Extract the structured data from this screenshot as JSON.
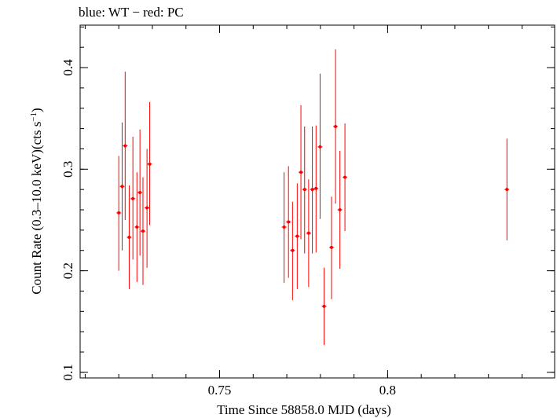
{
  "chart_data": {
    "type": "scatter",
    "title": "blue: WT − red: PC",
    "xlabel": "Time Since 58858.0 MJD (days)",
    "ylabel_main": "Count Rate (0.3–10.0 keV)(cts s",
    "ylabel_sup": "−1",
    "ylabel_end": ")",
    "xlim": [
      0.7085,
      0.8497
    ],
    "ylim": [
      0.0945,
      0.4418
    ],
    "xticks": [
      {
        "value": 0.75,
        "label": "0.75"
      },
      {
        "value": 0.8,
        "label": "0.8"
      }
    ],
    "yticks": [
      {
        "value": 0.1,
        "label": "0.1"
      },
      {
        "value": 0.2,
        "label": "0.2"
      },
      {
        "value": 0.3,
        "label": "0.3"
      },
      {
        "value": 0.4,
        "label": "0.4"
      }
    ],
    "x_minor_step": 0.01,
    "y_minor_step": 0.02,
    "grid": false,
    "series": [
      {
        "name": "PC",
        "color": "#ff0000",
        "points": [
          {
            "x": 0.72,
            "y": 0.257,
            "ylo": 0.2,
            "yhi": 0.313
          },
          {
            "x": 0.721,
            "y": 0.283,
            "ylo": 0.22,
            "yhi": 0.346
          },
          {
            "x": 0.7219,
            "y": 0.323,
            "ylo": 0.25,
            "yhi": 0.396
          },
          {
            "x": 0.7231,
            "y": 0.233,
            "ylo": 0.182,
            "yhi": 0.284
          },
          {
            "x": 0.7242,
            "y": 0.271,
            "ylo": 0.211,
            "yhi": 0.332
          },
          {
            "x": 0.7254,
            "y": 0.243,
            "ylo": 0.189,
            "yhi": 0.297
          },
          {
            "x": 0.7263,
            "y": 0.277,
            "ylo": 0.215,
            "yhi": 0.339
          },
          {
            "x": 0.7272,
            "y": 0.239,
            "ylo": 0.186,
            "yhi": 0.292
          },
          {
            "x": 0.7284,
            "y": 0.262,
            "ylo": 0.203,
            "yhi": 0.32
          },
          {
            "x": 0.7292,
            "y": 0.305,
            "ylo": 0.245,
            "yhi": 0.366
          },
          {
            "x": 0.7692,
            "y": 0.243,
            "ylo": 0.188,
            "yhi": 0.297
          },
          {
            "x": 0.7705,
            "y": 0.248,
            "ylo": 0.193,
            "yhi": 0.303
          },
          {
            "x": 0.7717,
            "y": 0.22,
            "ylo": 0.171,
            "yhi": 0.268
          },
          {
            "x": 0.7731,
            "y": 0.234,
            "ylo": 0.182,
            "yhi": 0.286
          },
          {
            "x": 0.7742,
            "y": 0.297,
            "ylo": 0.231,
            "yhi": 0.363
          },
          {
            "x": 0.7753,
            "y": 0.28,
            "ylo": 0.217,
            "yhi": 0.342
          },
          {
            "x": 0.7765,
            "y": 0.237,
            "ylo": 0.184,
            "yhi": 0.29
          },
          {
            "x": 0.7776,
            "y": 0.28,
            "ylo": 0.217,
            "yhi": 0.342
          },
          {
            "x": 0.7787,
            "y": 0.281,
            "ylo": 0.218,
            "yhi": 0.343
          },
          {
            "x": 0.7799,
            "y": 0.322,
            "ylo": 0.251,
            "yhi": 0.394
          },
          {
            "x": 0.7811,
            "y": 0.165,
            "ylo": 0.127,
            "yhi": 0.203
          },
          {
            "x": 0.7833,
            "y": 0.223,
            "ylo": 0.172,
            "yhi": 0.273
          },
          {
            "x": 0.7845,
            "y": 0.342,
            "ylo": 0.266,
            "yhi": 0.418
          },
          {
            "x": 0.7858,
            "y": 0.26,
            "ylo": 0.202,
            "yhi": 0.318
          },
          {
            "x": 0.7873,
            "y": 0.292,
            "ylo": 0.239,
            "yhi": 0.345
          },
          {
            "x": 0.8355,
            "y": 0.28,
            "ylo": 0.23,
            "yhi": 0.33
          }
        ]
      }
    ]
  }
}
